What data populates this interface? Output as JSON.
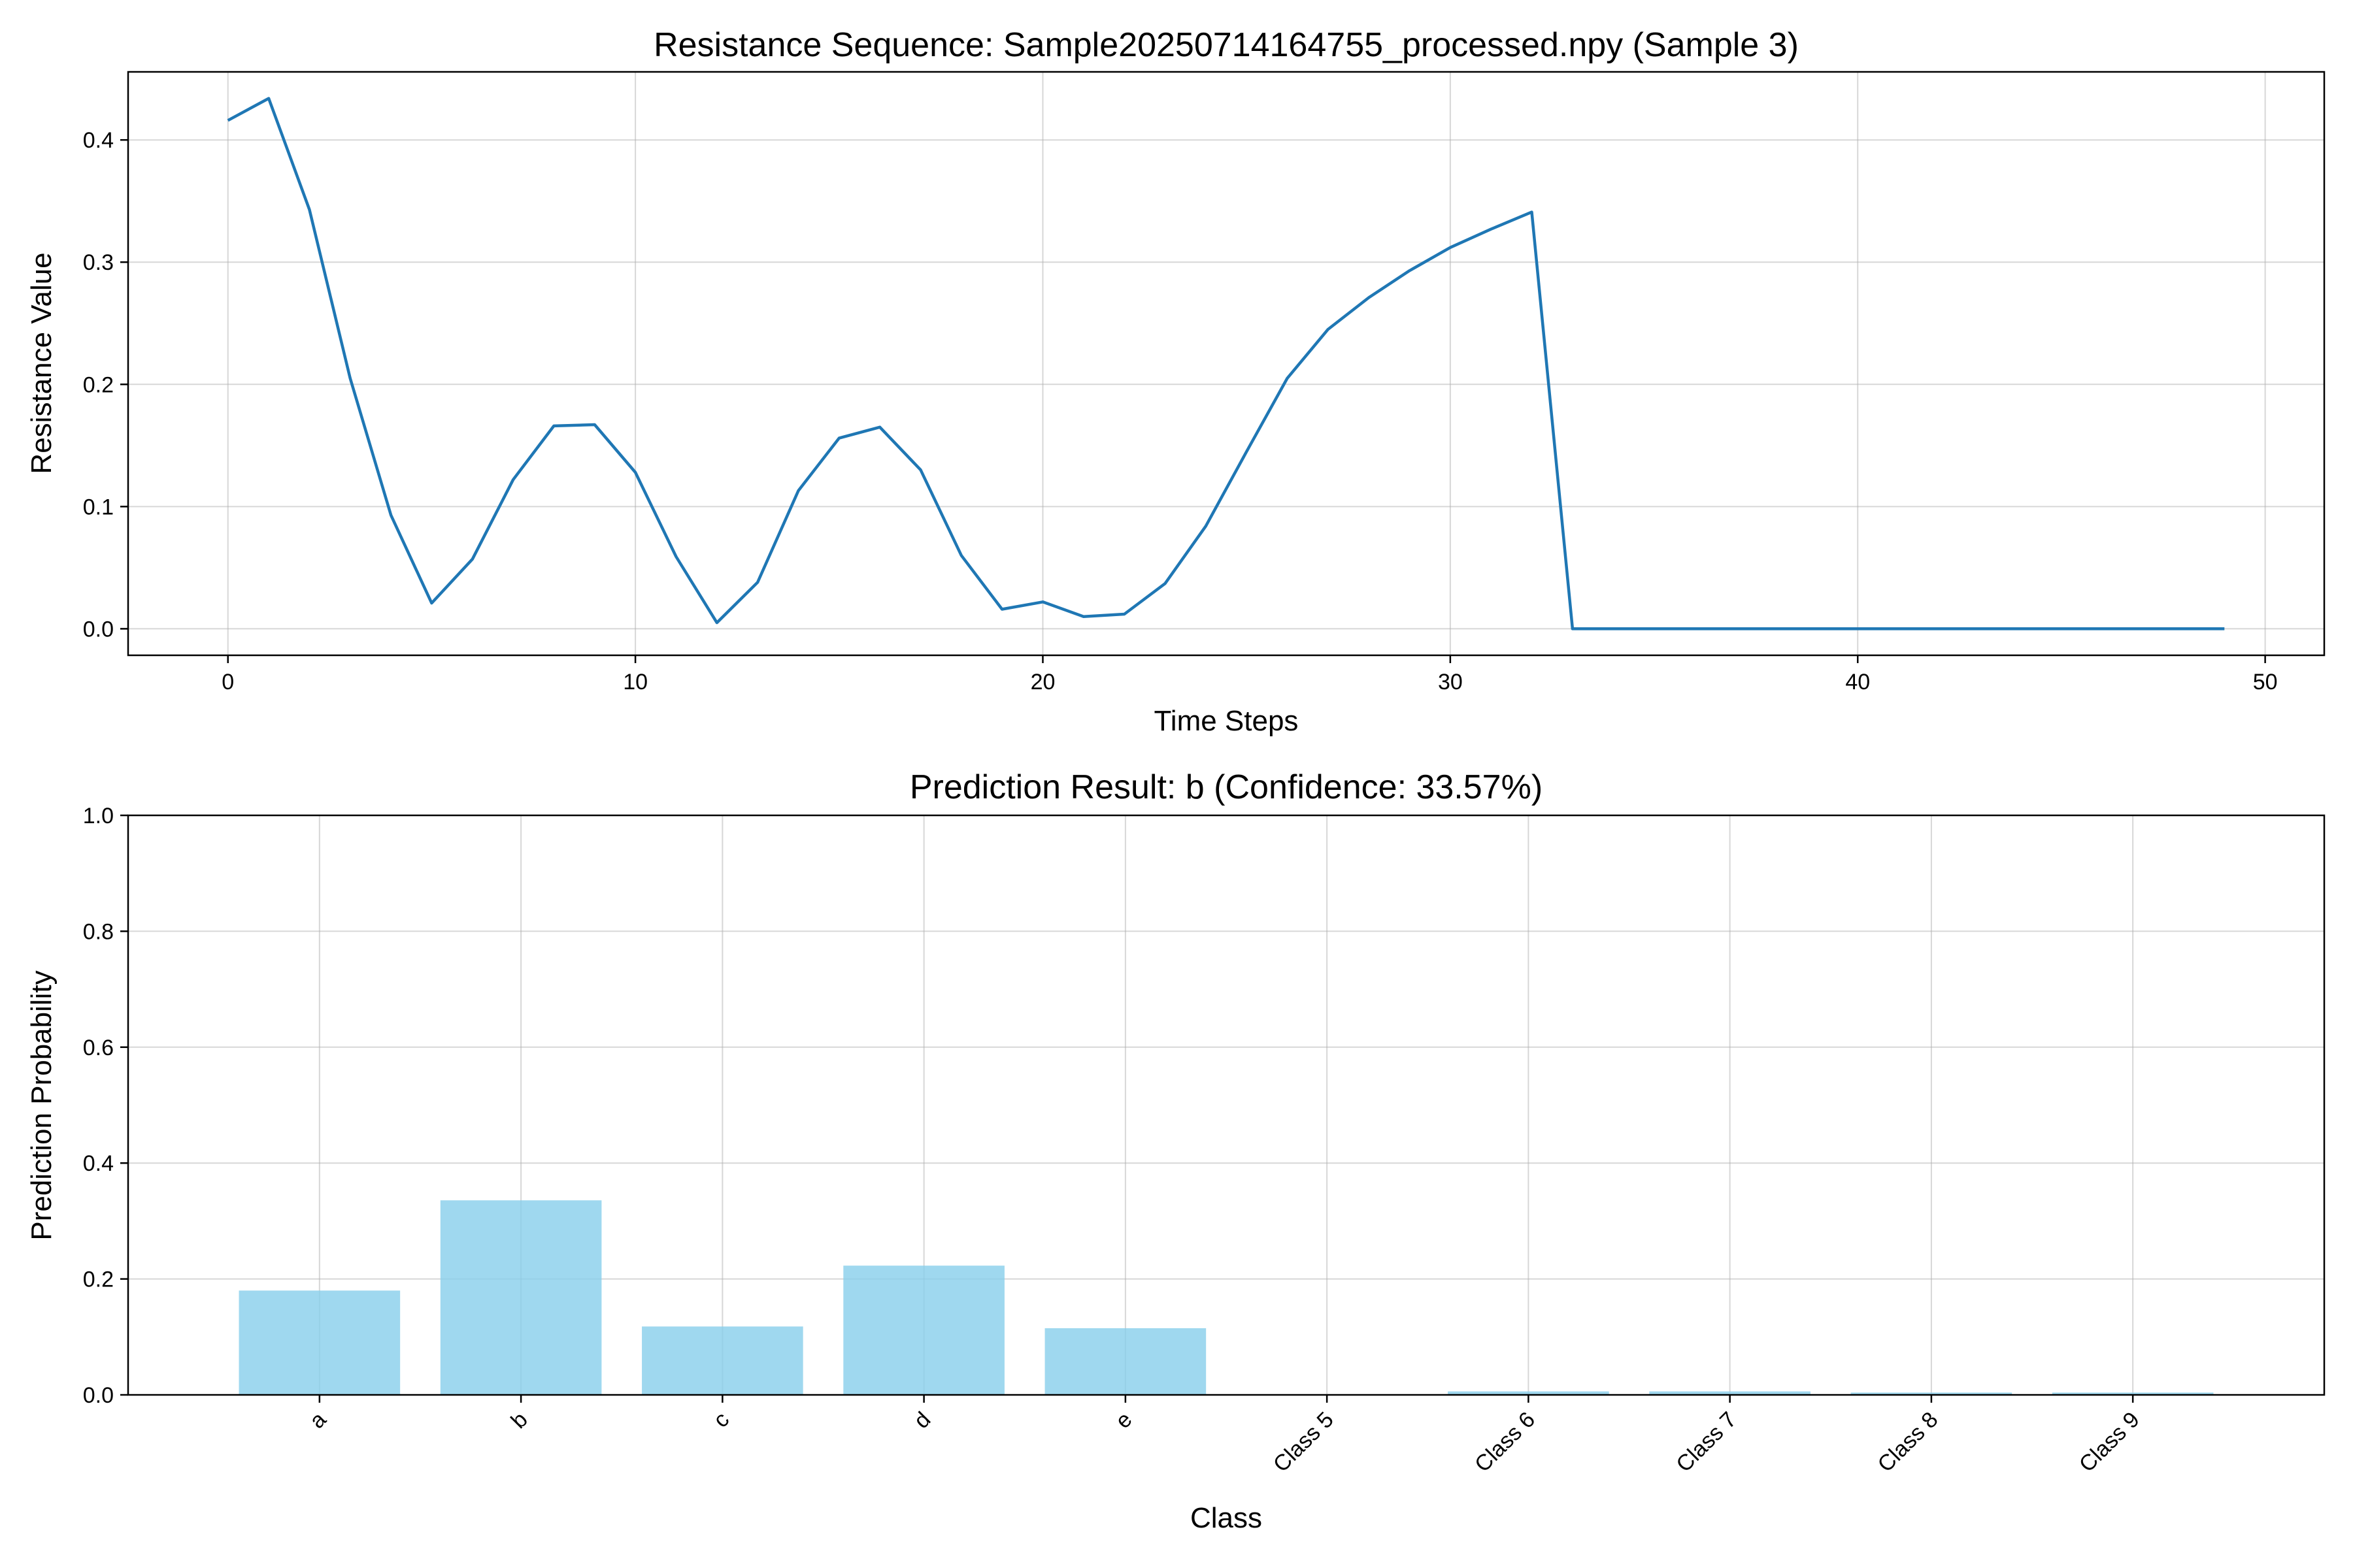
{
  "chart_data": [
    {
      "type": "line",
      "title": "Resistance Sequence: Sample20250714164755_processed.npy (Sample 3)",
      "xlabel": "Time Steps",
      "ylabel": "Resistance Value",
      "xlim": [
        -2.45,
        51.45
      ],
      "ylim": [
        -0.0217,
        0.4557
      ],
      "x_ticks": [
        0,
        10,
        20,
        30,
        40,
        50
      ],
      "y_ticks": [
        0.0,
        0.1,
        0.2,
        0.3,
        0.4
      ],
      "y_tick_labels": [
        "0.0",
        "0.1",
        "0.2",
        "0.3",
        "0.4"
      ],
      "grid": true,
      "series": [
        {
          "name": "Resistance",
          "color": "#1f77b4",
          "x": [
            0,
            1,
            2,
            3,
            4,
            5,
            6,
            7,
            8,
            9,
            10,
            11,
            12,
            13,
            14,
            15,
            16,
            17,
            18,
            19,
            20,
            21,
            22,
            23,
            24,
            25,
            26,
            27,
            28,
            29,
            30,
            31,
            32,
            33,
            34,
            35,
            36,
            37,
            38,
            39,
            40,
            41,
            42,
            43,
            44,
            45,
            46,
            47,
            48,
            49
          ],
          "values": [
            0.416,
            0.434,
            0.343,
            0.205,
            0.093,
            0.021,
            0.057,
            0.122,
            0.166,
            0.167,
            0.128,
            0.059,
            0.005,
            0.038,
            0.113,
            0.156,
            0.165,
            0.13,
            0.06,
            0.016,
            0.022,
            0.01,
            0.012,
            0.037,
            0.084,
            0.145,
            0.205,
            0.245,
            0.271,
            0.293,
            0.312,
            0.327,
            0.341,
            0.0,
            0.0,
            0.0,
            0.0,
            0.0,
            0.0,
            0.0,
            0.0,
            0.0,
            0.0,
            0.0,
            0.0,
            0.0,
            0.0,
            0.0,
            0.0,
            0.0
          ]
        }
      ]
    },
    {
      "type": "bar",
      "title": "Prediction Result: b (Confidence: 33.57%)",
      "xlabel": "Class",
      "ylabel": "Prediction Probability",
      "ylim": [
        0,
        1.0
      ],
      "y_ticks": [
        0.0,
        0.2,
        0.4,
        0.6,
        0.8,
        1.0
      ],
      "y_tick_labels": [
        "0.0",
        "0.2",
        "0.4",
        "0.6",
        "0.8",
        "1.0"
      ],
      "grid": true,
      "bar_color": "#87ceeb",
      "categories": [
        "a",
        "b",
        "c",
        "d",
        "e",
        "Class 5",
        "Class 6",
        "Class 7",
        "Class 8",
        "Class 9"
      ],
      "values": [
        0.18,
        0.3357,
        0.118,
        0.223,
        0.115,
        0.001,
        0.006,
        0.006,
        0.004,
        0.004
      ]
    }
  ]
}
